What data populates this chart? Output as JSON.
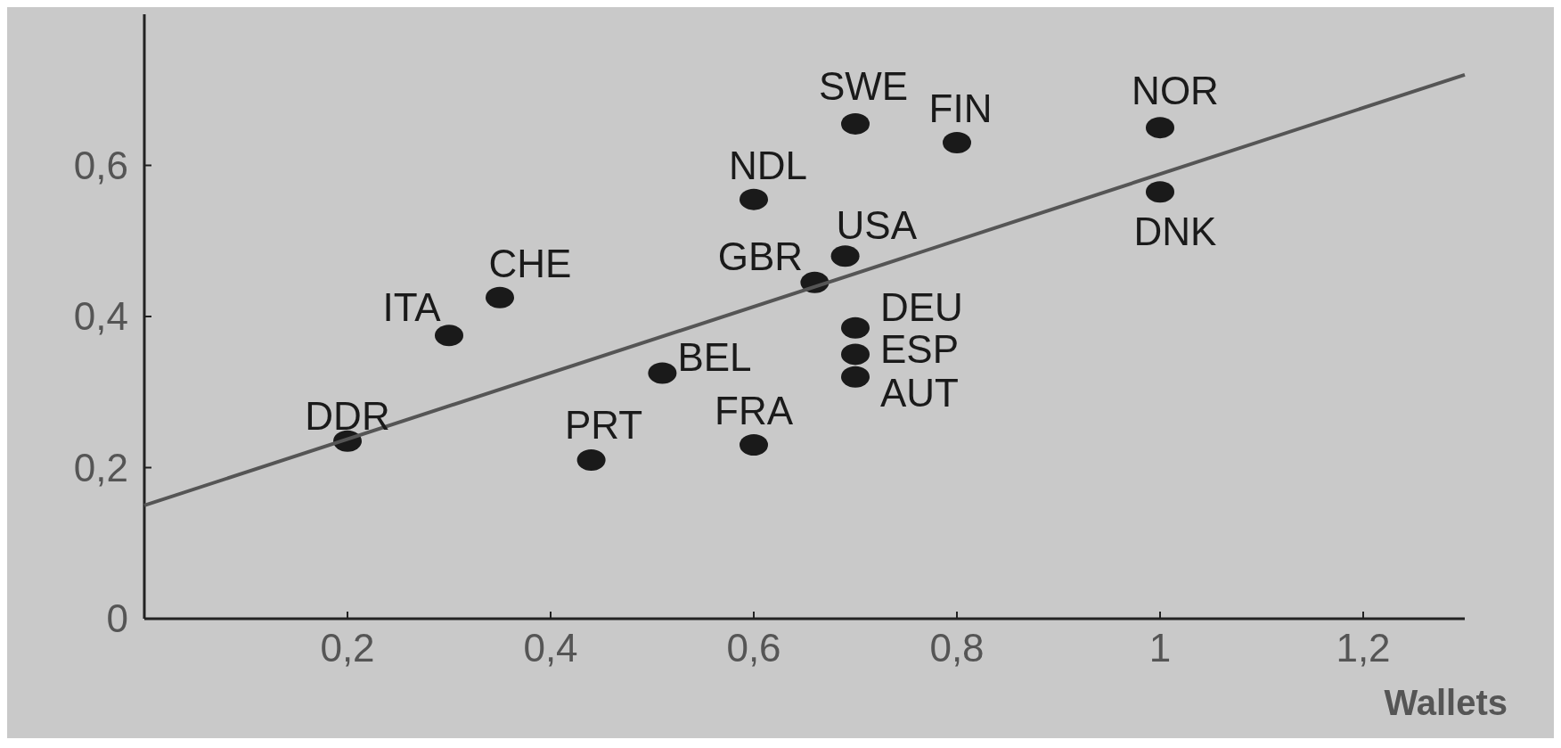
{
  "chart_data": {
    "type": "scatter",
    "xlabel": "Wallets",
    "xlim": [
      0,
      1.3
    ],
    "ylim": [
      0,
      0.8
    ],
    "xticks": [
      {
        "value": 0.2,
        "label": "0,2"
      },
      {
        "value": 0.4,
        "label": "0,4"
      },
      {
        "value": 0.6,
        "label": "0,6"
      },
      {
        "value": 0.8,
        "label": "0,8"
      },
      1,
      {
        "value": 1.2,
        "label": "1,2"
      }
    ],
    "yticks": [
      0,
      {
        "value": 0.2,
        "label": "0,2"
      },
      {
        "value": 0.4,
        "label": "0,4"
      },
      {
        "value": 0.6,
        "label": "0,6"
      }
    ],
    "grid": false,
    "marker": "circle",
    "series": [
      {
        "color": "#1a1a1a",
        "x": [
          0.2,
          0.3,
          0.35,
          0.44,
          0.51,
          0.6,
          0.6,
          0.66,
          0.69,
          0.7,
          0.8,
          0.7,
          0.7,
          0.7,
          1,
          1
        ],
        "values": [
          0.235,
          0.375,
          0.425,
          0.21,
          0.325,
          0.23,
          0.555,
          0.445,
          0.48,
          0.655,
          0.63,
          0.385,
          0.35,
          0.32,
          0.65,
          0.565
        ]
      },
      {
        "type": "line",
        "color": "#555555",
        "x": [
          0,
          1.3
        ],
        "values": [
          0.15,
          0.72
        ],
        "marker": "none",
        "line_style": "solid"
      }
    ],
    "annotations": [
      {
        "text": "DDR",
        "x": 0.2,
        "y": 0.235
      },
      {
        "text": "ITA",
        "x": 0.3,
        "y": 0.375
      },
      {
        "text": "CHE",
        "x": 0.35,
        "y": 0.425
      },
      {
        "text": "PRT",
        "x": 0.44,
        "y": 0.21
      },
      {
        "text": "BEL",
        "x": 0.51,
        "y": 0.325
      },
      {
        "text": "FRA",
        "x": 0.6,
        "y": 0.23
      },
      {
        "text": "NDL",
        "x": 0.6,
        "y": 0.555
      },
      {
        "text": "GBR",
        "x": 0.66,
        "y": 0.445
      },
      {
        "text": "USA",
        "x": 0.69,
        "y": 0.48
      },
      {
        "text": "SWE",
        "x": 0.7,
        "y": 0.655
      },
      {
        "text": "FIN",
        "x": 0.8,
        "y": 0.63
      },
      {
        "text": "DEU",
        "x": 0.7,
        "y": 0.385
      },
      {
        "text": "ESP",
        "x": 0.7,
        "y": 0.35
      },
      {
        "text": "AUT",
        "x": 0.7,
        "y": 0.32
      },
      {
        "text": "NOR",
        "x": 1,
        "y": 0.65
      },
      {
        "text": "DNK",
        "x": 1,
        "y": 0.565
      }
    ]
  }
}
